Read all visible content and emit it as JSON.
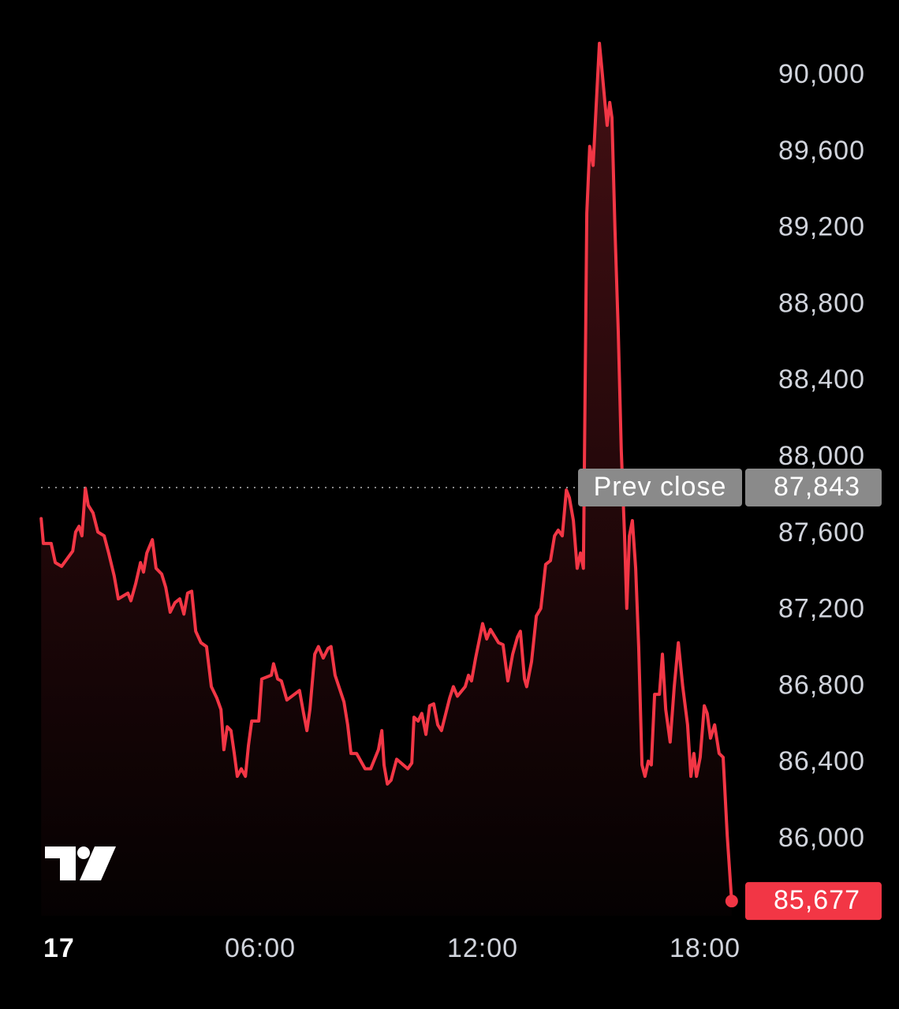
{
  "chart_data": {
    "type": "line",
    "x": [
      0.09,
      0.15,
      0.36,
      0.47,
      0.64,
      0.94,
      1.02,
      1.11,
      1.19,
      1.28,
      1.36,
      1.49,
      1.62,
      1.79,
      1.91,
      2.06,
      2.17,
      2.43,
      2.51,
      2.64,
      2.77,
      2.85,
      2.94,
      3.09,
      3.19,
      3.34,
      3.45,
      3.57,
      3.7,
      3.83,
      3.94,
      4.04,
      4.15,
      4.26,
      4.4,
      4.55,
      4.68,
      4.83,
      4.94,
      5.02,
      5.11,
      5.21,
      5.3,
      5.38,
      5.49,
      5.6,
      5.68,
      5.77,
      5.96,
      6.04,
      6.3,
      6.36,
      6.47,
      6.57,
      6.72,
      7.06,
      7.17,
      7.26,
      7.34,
      7.47,
      7.57,
      7.7,
      7.83,
      7.91,
      8.02,
      8.26,
      8.36,
      8.45,
      8.6,
      8.83,
      8.98,
      9.19,
      9.28,
      9.34,
      9.43,
      9.53,
      9.68,
      9.98,
      10.09,
      10.15,
      10.26,
      10.36,
      10.47,
      10.57,
      10.68,
      10.79,
      10.89,
      11.11,
      11.21,
      11.32,
      11.53,
      11.62,
      11.7,
      11.81,
      12.0,
      12.11,
      12.21,
      12.43,
      12.55,
      12.68,
      12.81,
      12.94,
      13.02,
      13.13,
      13.19,
      13.32,
      13.45,
      13.57,
      13.7,
      13.83,
      13.94,
      14.04,
      14.15,
      14.26,
      14.34,
      14.45,
      14.55,
      14.64,
      14.72,
      14.81,
      14.89,
      14.98,
      15.09,
      15.15,
      15.21,
      15.3,
      15.36,
      15.43,
      15.49,
      15.57,
      15.66,
      15.74,
      15.83,
      15.89,
      15.96,
      16.04,
      16.13,
      16.21,
      16.3,
      16.38,
      16.47,
      16.55,
      16.64,
      16.77,
      16.85,
      16.94,
      17.06,
      17.17,
      17.28,
      17.4,
      17.53,
      17.62,
      17.7,
      17.77,
      17.87,
      17.98,
      18.06,
      18.15,
      18.26,
      18.38,
      18.49,
      18.6,
      18.72
    ],
    "values": [
      87680,
      87550,
      87550,
      87450,
      87430,
      87510,
      87610,
      87640,
      87590,
      87840,
      87750,
      87710,
      87610,
      87590,
      87500,
      87380,
      87260,
      87290,
      87250,
      87340,
      87450,
      87400,
      87500,
      87570,
      87420,
      87390,
      87320,
      87190,
      87240,
      87260,
      87180,
      87290,
      87300,
      87090,
      87030,
      87010,
      86800,
      86740,
      86680,
      86470,
      86590,
      86570,
      86450,
      86330,
      86370,
      86330,
      86490,
      86620,
      86620,
      86840,
      86860,
      86920,
      86840,
      86830,
      86730,
      86780,
      86660,
      86570,
      86680,
      86970,
      87010,
      86950,
      87000,
      87010,
      86860,
      86720,
      86600,
      86450,
      86450,
      86370,
      86370,
      86470,
      86570,
      86390,
      86290,
      86310,
      86420,
      86370,
      86400,
      86640,
      86620,
      86660,
      86550,
      86700,
      86710,
      86600,
      86570,
      86740,
      86800,
      86750,
      86800,
      86860,
      86830,
      86950,
      87130,
      87050,
      87100,
      87030,
      87020,
      86830,
      86970,
      87060,
      87090,
      86840,
      86800,
      86930,
      87170,
      87210,
      87440,
      87460,
      87590,
      87620,
      87590,
      87830,
      87790,
      87670,
      87420,
      87500,
      87420,
      89280,
      89630,
      89530,
      89940,
      90170,
      90050,
      89860,
      89740,
      89860,
      89780,
      89200,
      88660,
      88040,
      87590,
      87210,
      87590,
      87670,
      87420,
      87010,
      86390,
      86330,
      86410,
      86390,
      86760,
      86760,
      86970,
      86680,
      86510,
      86800,
      87030,
      86800,
      86600,
      86330,
      86450,
      86330,
      86430,
      86700,
      86660,
      86530,
      86600,
      86450,
      86430,
      86020,
      85677
    ],
    "color": "#f23645",
    "xlim": [
      0,
      19.5
    ],
    "xticks": [
      {
        "value": 0,
        "label": "17"
      },
      {
        "value": 6,
        "label": "06:00"
      },
      {
        "value": 12,
        "label": "12:00"
      },
      {
        "value": 18,
        "label": "18:00"
      }
    ],
    "ylim": [
      85600,
      90400
    ],
    "yticks": [
      {
        "value": 86000,
        "label": "86,000"
      },
      {
        "value": 86400,
        "label": "86,400"
      },
      {
        "value": 86800,
        "label": "86,800"
      },
      {
        "value": 87200,
        "label": "87,200"
      },
      {
        "value": 87600,
        "label": "87,600"
      },
      {
        "value": 88000,
        "label": "88,000"
      },
      {
        "value": 88400,
        "label": "88,400"
      },
      {
        "value": 88800,
        "label": "88,800"
      },
      {
        "value": 89200,
        "label": "89,200"
      },
      {
        "value": 89600,
        "label": "89,600"
      },
      {
        "value": 90000,
        "label": "90,000"
      }
    ],
    "prev_close": {
      "label": "Prev close",
      "value": 87843,
      "value_label": "87,843"
    },
    "last_price": {
      "value": 85677,
      "label": "85,677"
    }
  }
}
